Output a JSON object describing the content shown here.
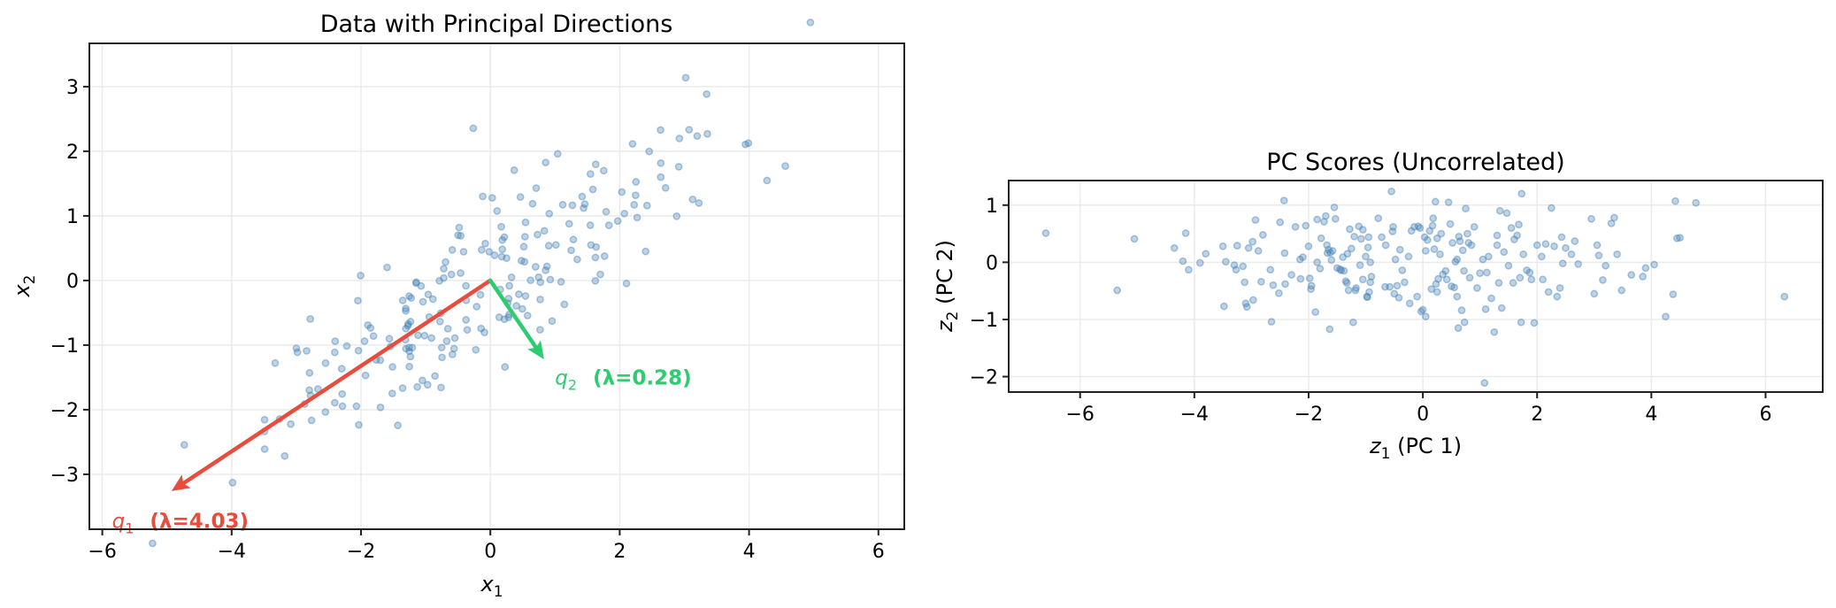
{
  "chart_data": [
    {
      "type": "scatter",
      "title": "Data with Principal Directions",
      "xlabel": "x1",
      "ylabel": "x2",
      "xlim": [
        -6.2,
        6.4
      ],
      "ylim": [
        -3.85,
        3.67
      ],
      "xticks": [
        -6,
        -4,
        -2,
        0,
        2,
        4,
        6
      ],
      "yticks": [
        -3,
        -2,
        -1,
        0,
        1,
        2,
        3
      ],
      "grid": true,
      "point_color": "#4682b4",
      "point_alpha": 0.35,
      "arrows": [
        {
          "name": "q1",
          "label_sym": "q",
          "label_sub": "1",
          "label_value": "(λ=4.03)",
          "color": "#e74c3c",
          "from": [
            0,
            0
          ],
          "to": [
            -4.93,
            -3.26
          ],
          "label_pos": [
            -5.85,
            -3.72
          ]
        },
        {
          "name": "q2",
          "label_sym": "q",
          "label_sub": "2",
          "label_value": "(λ=0.28)",
          "color": "#2ecc71",
          "from": [
            0,
            0
          ],
          "to": [
            0.83,
            -1.22
          ],
          "label_pos": [
            1.0,
            -1.5
          ]
        }
      ]
    },
    {
      "type": "scatter",
      "title": "PC Scores (Uncorrelated)",
      "xlabel": "z1 (PC 1)",
      "ylabel": "z2 (PC 2)",
      "xlim": [
        -7.25,
        7.0
      ],
      "ylim": [
        -2.27,
        1.43
      ],
      "xticks": [
        -6,
        -4,
        -2,
        0,
        2,
        4,
        6
      ],
      "yticks": [
        -2,
        -1,
        0,
        1
      ],
      "grid": true,
      "point_color": "#4682b4",
      "point_alpha": 0.35,
      "points": [
        [
          -6.6,
          0.51
        ],
        [
          -5.35,
          -0.49
        ],
        [
          -5.05,
          0.41
        ],
        [
          -4.35,
          0.25
        ],
        [
          -4.2,
          0.02
        ],
        [
          -4.15,
          0.51
        ],
        [
          -4.1,
          -0.13
        ],
        [
          -3.9,
          -0.01
        ],
        [
          -3.8,
          0.15
        ],
        [
          -3.5,
          0.28
        ],
        [
          -3.48,
          -0.77
        ],
        [
          -3.45,
          0.01
        ],
        [
          -3.3,
          -0.05
        ],
        [
          -3.27,
          -0.13
        ],
        [
          -3.25,
          0.29
        ],
        [
          -3.15,
          -0.07
        ],
        [
          -3.12,
          -0.35
        ],
        [
          -3.1,
          -0.72
        ],
        [
          -3.08,
          -0.78
        ],
        [
          -3.05,
          0.25
        ],
        [
          -2.98,
          0.36
        ],
        [
          -2.97,
          -0.66
        ],
        [
          -2.93,
          0.74
        ],
        [
          -2.88,
          0.2
        ],
        [
          -2.83,
          -0.34
        ],
        [
          -2.8,
          0.48
        ],
        [
          -2.67,
          -0.13
        ],
        [
          -2.65,
          -1.04
        ],
        [
          -2.62,
          -0.4
        ],
        [
          -2.5,
          0.7
        ],
        [
          -2.52,
          -0.54
        ],
        [
          -2.43,
          1.08
        ],
        [
          -2.42,
          0.16
        ],
        [
          -2.41,
          -0.38
        ],
        [
          -2.3,
          -0.22
        ],
        [
          -2.23,
          0.62
        ],
        [
          -2.15,
          0.05
        ],
        [
          -2.14,
          -0.29
        ],
        [
          -2.1,
          0.09
        ],
        [
          -2.05,
          0.64
        ],
        [
          -2.0,
          0.28
        ],
        [
          -1.98,
          -0.28
        ],
        [
          -1.95,
          -0.41
        ],
        [
          -1.96,
          -0.47
        ],
        [
          -1.85,
          0.0
        ],
        [
          -1.88,
          -0.87
        ],
        [
          -1.85,
          0.75
        ],
        [
          -1.8,
          -0.11
        ],
        [
          -1.78,
          0.42
        ],
        [
          -1.73,
          0.71
        ],
        [
          -1.7,
          0.81
        ],
        [
          -1.68,
          0.3
        ],
        [
          -1.67,
          0.16
        ],
        [
          -1.65,
          0.22
        ],
        [
          -1.63,
          -1.17
        ],
        [
          -1.62,
          0.17
        ],
        [
          -1.6,
          0.04
        ],
        [
          -1.58,
          0.2
        ],
        [
          -1.55,
          0.96
        ],
        [
          -1.53,
          0.76
        ],
        [
          -1.5,
          -0.1
        ],
        [
          -1.45,
          -0.12
        ],
        [
          -1.43,
          -0.14
        ],
        [
          -1.4,
          0.09
        ],
        [
          -1.38,
          -0.15
        ],
        [
          -1.35,
          -0.33
        ],
        [
          -1.33,
          -0.36
        ],
        [
          -1.32,
          0.15
        ],
        [
          -1.3,
          -0.49
        ],
        [
          -1.28,
          0.58
        ],
        [
          -1.25,
          0.24
        ],
        [
          -1.22,
          -1.05
        ],
        [
          -1.2,
          0.45
        ],
        [
          -1.18,
          -0.49
        ],
        [
          -1.17,
          -0.45
        ],
        [
          -1.12,
          0.63
        ],
        [
          -1.08,
          0.41
        ],
        [
          -1.05,
          0.57
        ],
        [
          -1.05,
          -0.3
        ],
        [
          -1.0,
          0.1
        ],
        [
          -0.98,
          -0.6
        ],
        [
          -0.97,
          -0.61
        ],
        [
          -0.96,
          0.26
        ],
        [
          -0.95,
          0.44
        ],
        [
          -0.94,
          -0.52
        ],
        [
          -0.92,
          0.0
        ],
        [
          -0.92,
          -0.35
        ],
        [
          -0.9,
          -0.25
        ],
        [
          -0.78,
          0.77
        ],
        [
          -0.72,
          0.44
        ],
        [
          -0.66,
          -0.43
        ],
        [
          -0.58,
          -0.43
        ],
        [
          -0.55,
          1.24
        ],
        [
          -0.53,
          0.54
        ],
        [
          -0.52,
          0.62
        ],
        [
          -0.5,
          -0.55
        ],
        [
          -0.48,
          0.05
        ],
        [
          -0.45,
          -0.41
        ],
        [
          -0.42,
          -0.62
        ],
        [
          -0.4,
          0.22
        ],
        [
          -0.36,
          -0.14
        ],
        [
          -0.32,
          -0.35
        ],
        [
          -0.23,
          -0.72
        ],
        [
          -0.2,
          0.55
        ],
        [
          -0.15,
          0.62
        ],
        [
          -0.1,
          -0.6
        ],
        [
          -0.08,
          0.63
        ],
        [
          -0.05,
          0.6
        ],
        [
          -0.03,
          -0.86
        ],
        [
          0.0,
          -0.83
        ],
        [
          0.03,
          0.44
        ],
        [
          0.05,
          -0.95
        ],
        [
          0.08,
          0.39
        ],
        [
          0.12,
          0.55
        ],
        [
          0.15,
          -0.47
        ],
        [
          0.17,
          0.64
        ],
        [
          0.18,
          0.77
        ],
        [
          0.2,
          0.23
        ],
        [
          0.22,
          1.06
        ],
        [
          0.23,
          -0.38
        ],
        [
          0.25,
          -0.52
        ],
        [
          0.27,
          -0.29
        ],
        [
          0.3,
          0.14
        ],
        [
          0.32,
          0.5
        ],
        [
          0.35,
          -0.21
        ],
        [
          0.4,
          -0.15
        ],
        [
          0.42,
          -0.3
        ],
        [
          0.45,
          1.05
        ],
        [
          0.48,
          0.67
        ],
        [
          0.5,
          -0.42
        ],
        [
          0.52,
          0.34
        ],
        [
          0.55,
          -0.44
        ],
        [
          0.57,
          0.01
        ],
        [
          0.6,
          0.05
        ],
        [
          0.62,
          -1.15
        ],
        [
          0.63,
          0.45
        ],
        [
          0.65,
          0.37
        ],
        [
          0.68,
          -0.84
        ],
        [
          0.7,
          0.21
        ],
        [
          0.72,
          -0.15
        ],
        [
          0.73,
          -1.05
        ],
        [
          0.75,
          0.94
        ],
        [
          0.78,
          0.5
        ],
        [
          0.8,
          0.34
        ],
        [
          0.82,
          -0.27
        ],
        [
          0.85,
          0.3
        ],
        [
          0.95,
          -0.45
        ],
        [
          1.0,
          -0.19
        ],
        [
          1.05,
          0.05
        ],
        [
          1.08,
          -2.11
        ],
        [
          1.1,
          -0.82
        ],
        [
          1.12,
          -0.18
        ],
        [
          1.15,
          0.1
        ],
        [
          1.2,
          -0.63
        ],
        [
          1.25,
          -1.22
        ],
        [
          1.3,
          0.47
        ],
        [
          1.33,
          -0.36
        ],
        [
          1.35,
          0.9
        ],
        [
          1.38,
          -0.8
        ],
        [
          1.42,
          0.18
        ],
        [
          1.47,
          0.86
        ],
        [
          1.5,
          -0.06
        ],
        [
          1.55,
          0.6
        ],
        [
          1.58,
          -0.36
        ],
        [
          1.65,
          0.47
        ],
        [
          1.68,
          0.66
        ],
        [
          1.7,
          -0.27
        ],
        [
          1.72,
          -1.05
        ],
        [
          1.73,
          1.2
        ],
        [
          1.76,
          0.14
        ],
        [
          1.82,
          -0.14
        ],
        [
          1.87,
          -0.18
        ],
        [
          1.9,
          -0.3
        ],
        [
          1.95,
          -1.06
        ],
        [
          2.0,
          0.3
        ],
        [
          2.08,
          0.1
        ],
        [
          2.15,
          0.32
        ],
        [
          2.2,
          -0.52
        ],
        [
          2.25,
          0.95
        ],
        [
          2.3,
          0.28
        ],
        [
          2.35,
          -0.6
        ],
        [
          2.4,
          -0.45
        ],
        [
          2.43,
          0.44
        ],
        [
          2.45,
          -0.02
        ],
        [
          2.5,
          0.25
        ],
        [
          2.6,
          0.14
        ],
        [
          2.66,
          0.37
        ],
        [
          2.72,
          -0.03
        ],
        [
          2.95,
          0.76
        ],
        [
          3.0,
          -0.55
        ],
        [
          3.05,
          0.3
        ],
        [
          3.08,
          0.12
        ],
        [
          3.15,
          -0.31
        ],
        [
          3.2,
          -0.06
        ],
        [
          3.3,
          0.68
        ],
        [
          3.35,
          0.78
        ],
        [
          3.4,
          0.14
        ],
        [
          3.48,
          -0.49
        ],
        [
          3.65,
          -0.22
        ],
        [
          3.85,
          -0.25
        ],
        [
          3.9,
          -0.1
        ],
        [
          4.05,
          -0.04
        ],
        [
          4.25,
          -0.95
        ],
        [
          4.38,
          -0.56
        ],
        [
          4.42,
          1.07
        ],
        [
          4.45,
          0.42
        ],
        [
          4.5,
          0.43
        ],
        [
          4.78,
          1.04
        ],
        [
          6.33,
          -0.6
        ],
        [
          0.25,
          0.42
        ],
        [
          0.9,
          0.62
        ],
        [
          -0.65,
          0.3
        ],
        [
          1.6,
          0.4
        ],
        [
          -0.25,
          0.1
        ],
        [
          0.05,
          0.2
        ],
        [
          0.6,
          -0.6
        ],
        [
          -1.1,
          -0.05
        ],
        [
          2.1,
          -0.3
        ],
        [
          1.3,
          0.3
        ]
      ]
    }
  ],
  "figure": {
    "left_title": "Data with Principal Directions",
    "right_title": "PC Scores (Uncorrelated)",
    "left_xlabel_sym": "x",
    "left_xlabel_sub": "1",
    "left_ylabel_sym": "x",
    "left_ylabel_sub": "2",
    "right_xlabel_sym": "z",
    "right_xlabel_sub": "1",
    "right_xlabel_rest": " (PC 1)",
    "right_ylabel_sym": "z",
    "right_ylabel_sub": "2",
    "right_ylabel_rest": " (PC 2)"
  },
  "pca": {
    "q1": [
      0.834,
      0.552
    ],
    "q2": [
      0.552,
      -0.834
    ]
  }
}
